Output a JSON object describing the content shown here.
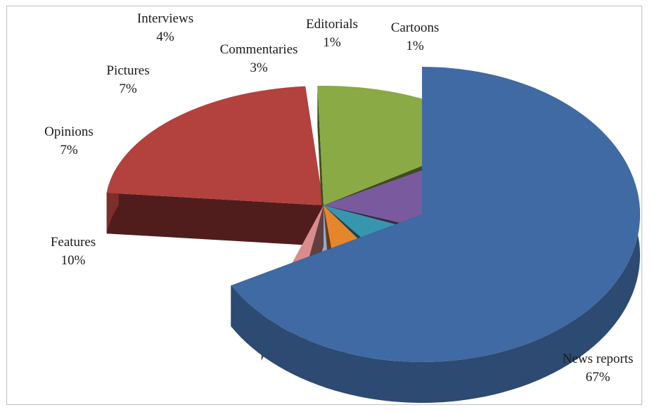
{
  "chart_data": {
    "type": "pie",
    "style": "3d-exploded",
    "title": "",
    "slices": [
      {
        "label": "News reports",
        "value": 67,
        "value_label": "67%",
        "color": "#3f6aa3"
      },
      {
        "label": "Features",
        "value": 10,
        "value_label": "10%",
        "color": "#b3413e"
      },
      {
        "label": "Opinions",
        "value": 7,
        "value_label": "7%",
        "color": "#8aaa45"
      },
      {
        "label": "Pictures",
        "value": 7,
        "value_label": "7%",
        "color": "#7a5a9e"
      },
      {
        "label": "Interviews",
        "value": 4,
        "value_label": "4%",
        "color": "#3895ae"
      },
      {
        "label": "Commentaries",
        "value": 3,
        "value_label": "3%",
        "color": "#e6862c"
      },
      {
        "label": "Editorials",
        "value": 1,
        "value_label": "1%",
        "color": "#8fa8d3"
      },
      {
        "label": "Cartoons",
        "value": 1,
        "value_label": "1%",
        "color": "#da8c8c"
      }
    ]
  }
}
